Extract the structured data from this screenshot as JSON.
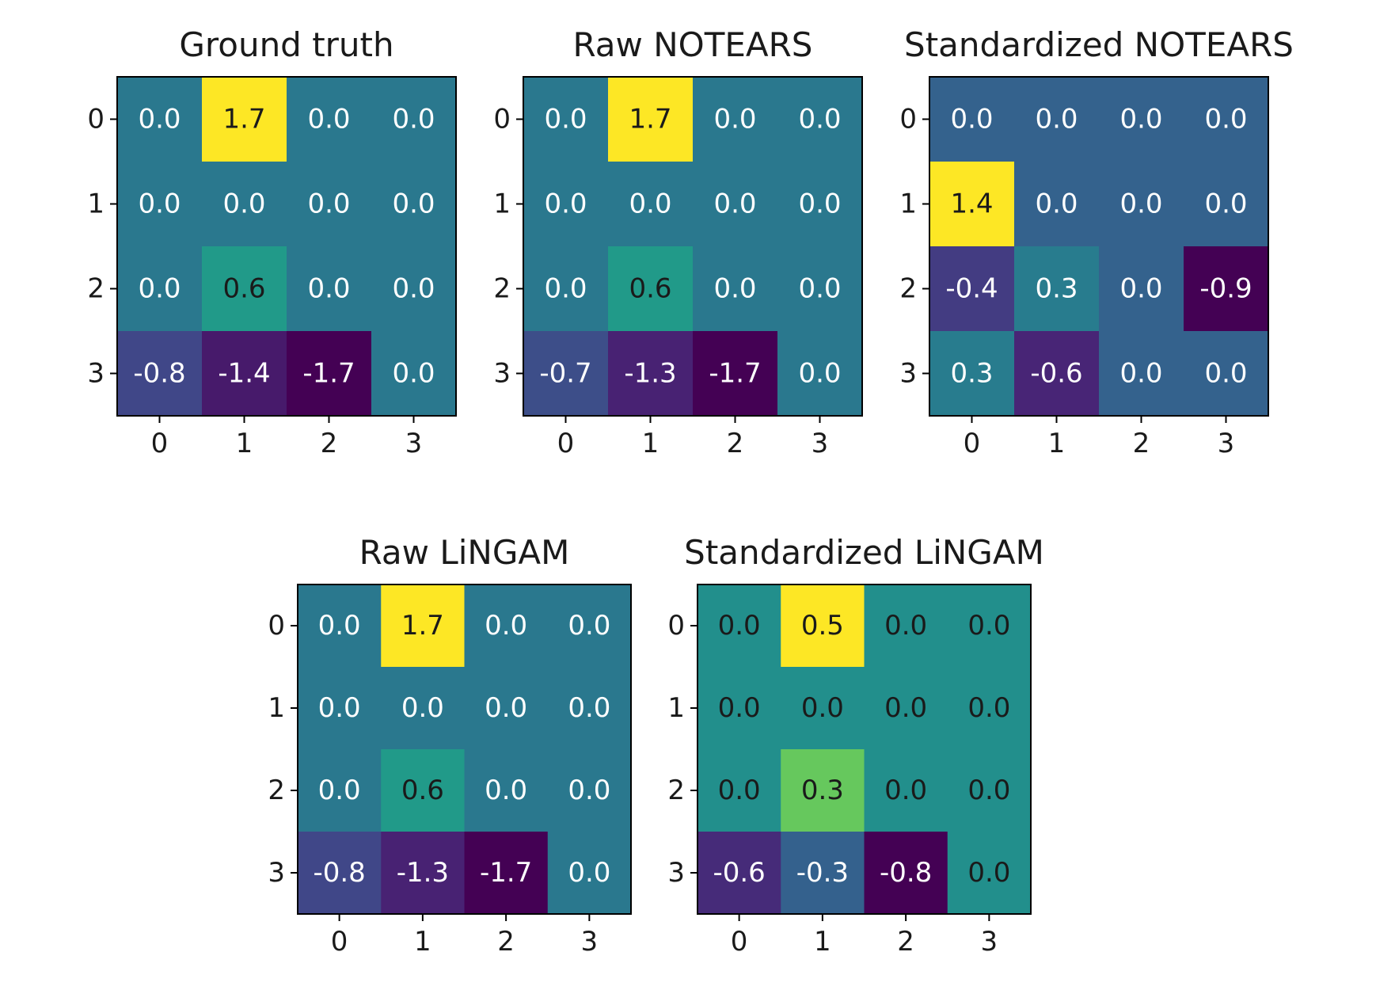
{
  "chart_data": [
    {
      "type": "heatmap",
      "title": "Ground truth",
      "x_ticks": [
        "0",
        "1",
        "2",
        "3"
      ],
      "y_ticks": [
        "0",
        "1",
        "2",
        "3"
      ],
      "matrix": [
        [
          0.0,
          1.7,
          0.0,
          0.0
        ],
        [
          0.0,
          0.0,
          0.0,
          0.0
        ],
        [
          0.0,
          0.6,
          0.0,
          0.0
        ],
        [
          -0.8,
          -1.4,
          -1.7,
          0.0
        ]
      ],
      "labels": [
        [
          "0.0",
          "1.7",
          "0.0",
          "0.0"
        ],
        [
          "0.0",
          "0.0",
          "0.0",
          "0.0"
        ],
        [
          "0.0",
          "0.6",
          "0.0",
          "0.0"
        ],
        [
          "-0.8",
          "-1.4",
          "-1.7",
          "0.0"
        ]
      ],
      "colormap": "viridis"
    },
    {
      "type": "heatmap",
      "title": "Raw NOTEARS",
      "x_ticks": [
        "0",
        "1",
        "2",
        "3"
      ],
      "y_ticks": [
        "0",
        "1",
        "2",
        "3"
      ],
      "matrix": [
        [
          0.0,
          1.7,
          0.0,
          0.0
        ],
        [
          0.0,
          0.0,
          0.0,
          0.0
        ],
        [
          0.0,
          0.6,
          0.0,
          0.0
        ],
        [
          -0.7,
          -1.3,
          -1.7,
          0.0
        ]
      ],
      "labels": [
        [
          "0.0",
          "1.7",
          "0.0",
          "0.0"
        ],
        [
          "0.0",
          "0.0",
          "0.0",
          "0.0"
        ],
        [
          "0.0",
          "0.6",
          "0.0",
          "0.0"
        ],
        [
          "-0.7",
          "-1.3",
          "-1.7",
          "0.0"
        ]
      ],
      "colormap": "viridis"
    },
    {
      "type": "heatmap",
      "title": "Standardized NOTEARS",
      "x_ticks": [
        "0",
        "1",
        "2",
        "3"
      ],
      "y_ticks": [
        "0",
        "1",
        "2",
        "3"
      ],
      "matrix": [
        [
          0.0,
          0.0,
          0.0,
          0.0
        ],
        [
          1.4,
          0.0,
          0.0,
          0.0
        ],
        [
          -0.4,
          0.3,
          0.0,
          -0.9
        ],
        [
          0.3,
          -0.6,
          0.0,
          0.0
        ]
      ],
      "labels": [
        [
          "0.0",
          "0.0",
          "0.0",
          "0.0"
        ],
        [
          "1.4",
          "0.0",
          "0.0",
          "0.0"
        ],
        [
          "-0.4",
          "0.3",
          "0.0",
          "-0.9"
        ],
        [
          "0.3",
          "-0.6",
          "0.0",
          "0.0"
        ]
      ],
      "colormap": "viridis"
    },
    {
      "type": "heatmap",
      "title": "Raw LiNGAM",
      "x_ticks": [
        "0",
        "1",
        "2",
        "3"
      ],
      "y_ticks": [
        "0",
        "1",
        "2",
        "3"
      ],
      "matrix": [
        [
          0.0,
          1.7,
          0.0,
          0.0
        ],
        [
          0.0,
          0.0,
          0.0,
          0.0
        ],
        [
          0.0,
          0.6,
          0.0,
          0.0
        ],
        [
          -0.8,
          -1.3,
          -1.7,
          0.0
        ]
      ],
      "labels": [
        [
          "0.0",
          "1.7",
          "0.0",
          "0.0"
        ],
        [
          "0.0",
          "0.0",
          "0.0",
          "0.0"
        ],
        [
          "0.0",
          "0.6",
          "0.0",
          "0.0"
        ],
        [
          "-0.8",
          "-1.3",
          "-1.7",
          "0.0"
        ]
      ],
      "colormap": "viridis"
    },
    {
      "type": "heatmap",
      "title": "Standardized LiNGAM",
      "x_ticks": [
        "0",
        "1",
        "2",
        "3"
      ],
      "y_ticks": [
        "0",
        "1",
        "2",
        "3"
      ],
      "matrix": [
        [
          0.0,
          0.5,
          0.0,
          0.0
        ],
        [
          0.0,
          0.0,
          0.0,
          0.0
        ],
        [
          0.0,
          0.3,
          0.0,
          0.0
        ],
        [
          -0.6,
          -0.3,
          -0.8,
          0.0
        ]
      ],
      "labels": [
        [
          "0.0",
          "0.5",
          "0.0",
          "0.0"
        ],
        [
          "0.0",
          "0.0",
          "0.0",
          "0.0"
        ],
        [
          "0.0",
          "0.3",
          "0.0",
          "0.0"
        ],
        [
          "-0.6",
          "-0.3",
          "-0.8",
          "0.0"
        ]
      ],
      "colormap": "viridis"
    }
  ]
}
